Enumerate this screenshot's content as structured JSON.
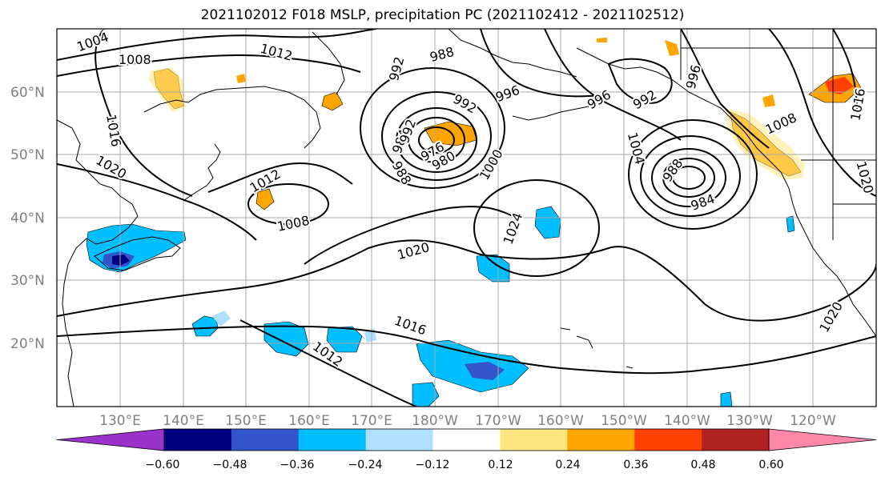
{
  "title": "2021102012 F018 MSLP, precipitation PC (2021102412 - 2021102512)",
  "lat_labels": [
    "60°N",
    "50°N",
    "40°N",
    "30°N",
    "20°N"
  ],
  "lon_labels": [
    "130°E",
    "140°E",
    "150°E",
    "160°E",
    "170°E",
    "180°W",
    "170°W",
    "160°W",
    "150°W",
    "140°W",
    "130°W",
    "120°W"
  ],
  "isobar_labels": [
    "1004",
    "1008",
    "1012",
    "1016",
    "1020",
    "992",
    "988",
    "992",
    "996",
    "984",
    "976",
    "980",
    "988",
    "992",
    "1000",
    "1012",
    "1008",
    "1020",
    "1024",
    "996",
    "1004",
    "988",
    "984",
    "992",
    "996",
    "1008",
    "1016",
    "1020",
    "1016",
    "1012",
    "1020"
  ],
  "colorbar": {
    "ticks": [
      "−0.60",
      "−0.48",
      "−0.36",
      "−0.24",
      "−0.12",
      "0.12",
      "0.24",
      "0.36",
      "0.48",
      "0.60"
    ],
    "colors": [
      "#9933cc",
      "#000080",
      "#3355cc",
      "#00bfff",
      "#b0e0ff",
      "#ffffff",
      "#ffe680",
      "#ffa500",
      "#ff4000",
      "#b22222",
      "#ff88aa"
    ]
  },
  "colors": {
    "grid": "#aaaaaa",
    "coast": "#000000",
    "isobar": "#000000"
  }
}
